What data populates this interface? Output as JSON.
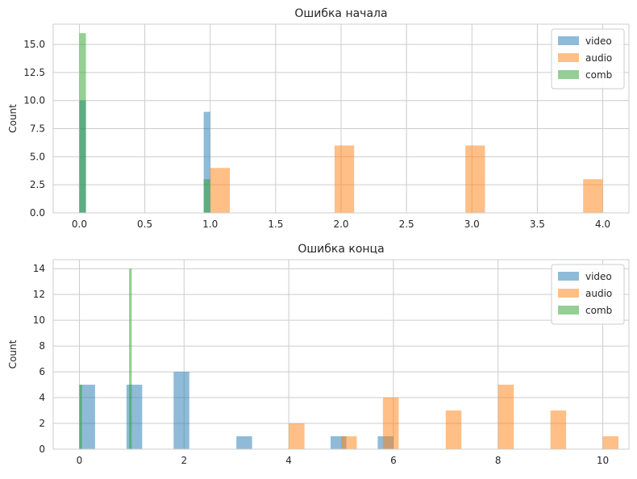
{
  "colors": {
    "video": "#1f77b4",
    "audio": "#ff7f0e",
    "comb": "#2ca02c",
    "grid": "#cccccc",
    "spine": "#cccccc",
    "legend_border": "#cccccc"
  },
  "chart_data": [
    {
      "type": "bar",
      "title": "Ошибка начала",
      "xlabel": "",
      "ylabel": "Count",
      "xlim": [
        -0.2,
        4.2
      ],
      "ylim": [
        0,
        16.8
      ],
      "xticks": [
        0.0,
        0.5,
        1.0,
        1.5,
        2.0,
        2.5,
        3.0,
        3.5,
        4.0
      ],
      "xtick_labels": [
        "0.0",
        "0.5",
        "1.0",
        "1.5",
        "2.0",
        "2.5",
        "3.0",
        "3.5",
        "4.0"
      ],
      "yticks": [
        0.0,
        2.5,
        5.0,
        7.5,
        10.0,
        12.5,
        15.0
      ],
      "ytick_labels": [
        "0.0",
        "2.5",
        "5.0",
        "7.5",
        "10.0",
        "12.5",
        "15.0"
      ],
      "grid": true,
      "legend_position": "top-right",
      "series": [
        {
          "name": "video",
          "color_key": "video",
          "bin_width": 0.05,
          "bins": [
            [
              0.0,
              10
            ],
            [
              0.95,
              9
            ]
          ]
        },
        {
          "name": "audio",
          "color_key": "audio",
          "bin_width": 0.15,
          "bins": [
            [
              1.0,
              4
            ],
            [
              1.95,
              6
            ],
            [
              2.95,
              6
            ],
            [
              3.85,
              3
            ]
          ]
        },
        {
          "name": "comb",
          "color_key": "comb",
          "bin_width": 0.05,
          "bins": [
            [
              0.0,
              16
            ],
            [
              0.95,
              3
            ]
          ]
        }
      ]
    },
    {
      "type": "bar",
      "title": "Ошибка конца",
      "xlabel": "",
      "ylabel": "Count",
      "xlim": [
        -0.5,
        10.5
      ],
      "ylim": [
        0,
        14.7
      ],
      "xticks": [
        0,
        2,
        4,
        6,
        8,
        10
      ],
      "xtick_labels": [
        "0",
        "2",
        "4",
        "6",
        "8",
        "10"
      ],
      "yticks": [
        0,
        2,
        4,
        6,
        8,
        10,
        12,
        14
      ],
      "ytick_labels": [
        "0",
        "2",
        "4",
        "6",
        "8",
        "10",
        "12",
        "14"
      ],
      "grid": true,
      "legend_position": "top-right",
      "series": [
        {
          "name": "video",
          "color_key": "video",
          "bin_width": 0.3,
          "bins": [
            [
              0.0,
              5
            ],
            [
              0.9,
              5
            ],
            [
              1.8,
              6
            ],
            [
              3.0,
              1
            ],
            [
              4.8,
              1
            ],
            [
              5.7,
              1
            ]
          ]
        },
        {
          "name": "audio",
          "color_key": "audio",
          "bin_width": 0.3,
          "bins": [
            [
              4.0,
              2
            ],
            [
              5.0,
              1
            ],
            [
              5.8,
              4
            ],
            [
              7.0,
              3
            ],
            [
              8.0,
              5
            ],
            [
              9.0,
              3
            ],
            [
              10.0,
              1
            ]
          ]
        },
        {
          "name": "comb",
          "color_key": "comb",
          "bin_width": 0.05,
          "bins": [
            [
              0.0,
              5
            ],
            [
              0.95,
              14
            ]
          ]
        }
      ]
    }
  ]
}
